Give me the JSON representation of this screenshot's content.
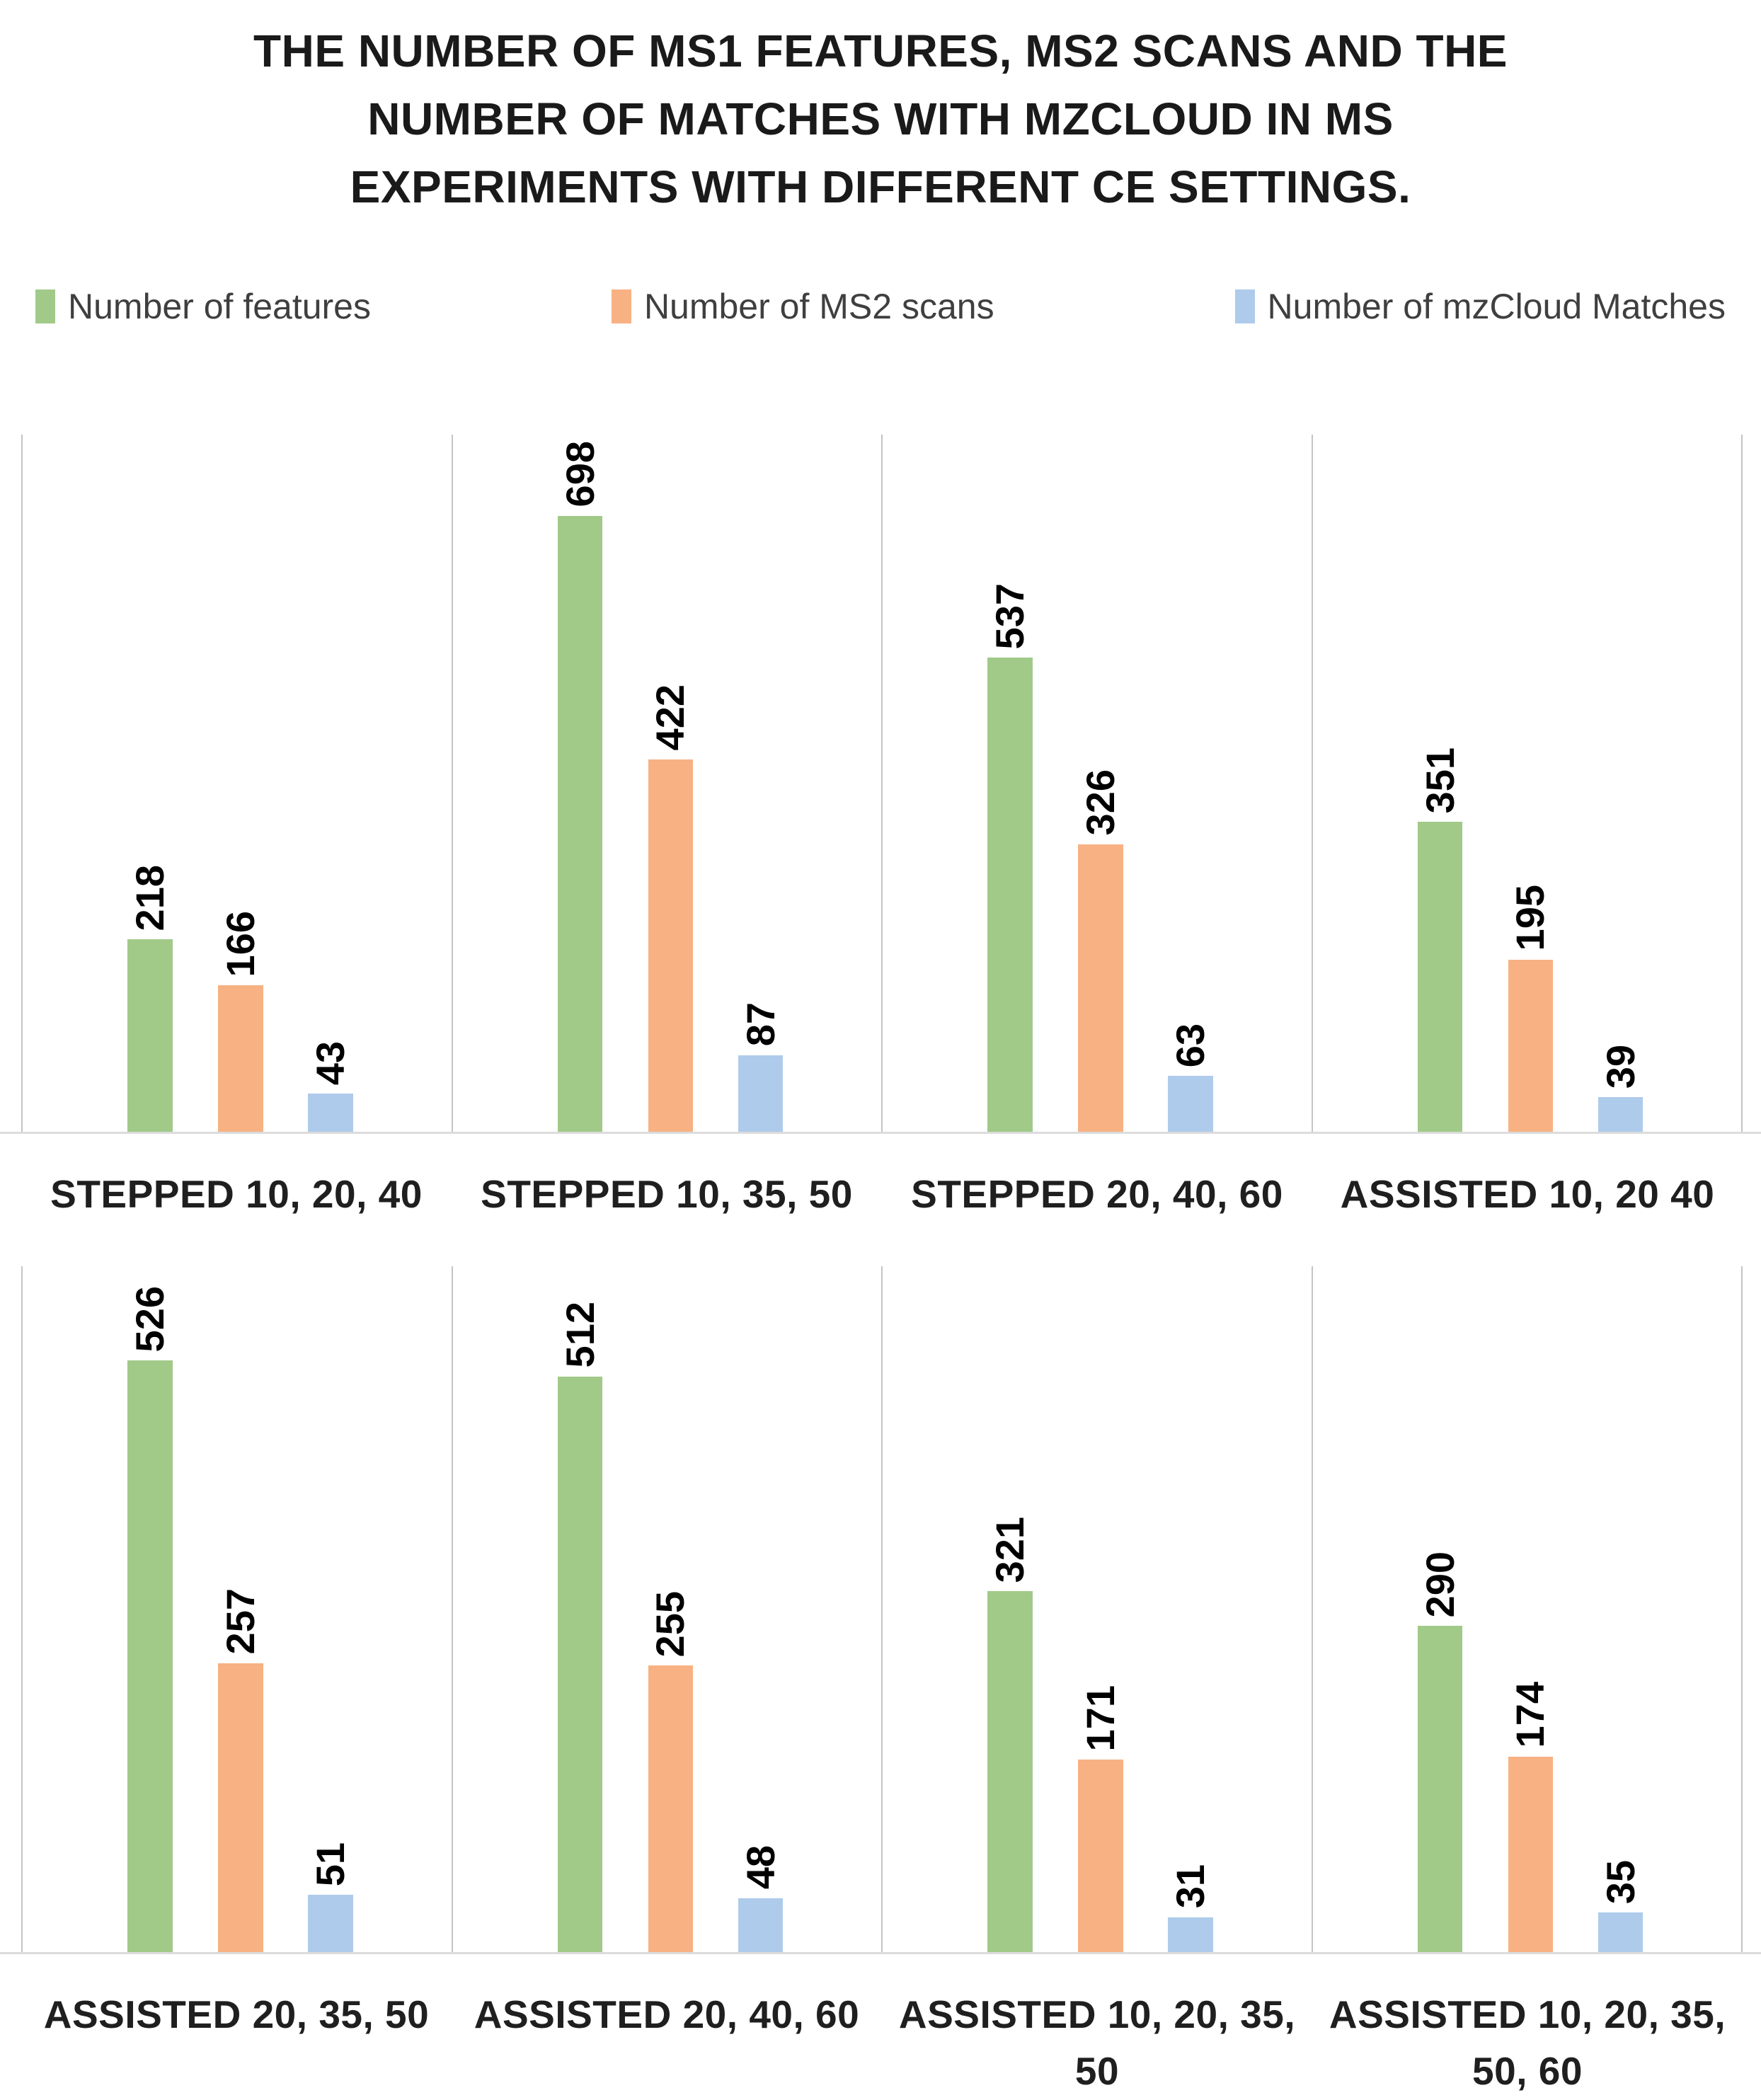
{
  "title": {
    "lines": [
      "THE NUMBER OF MS1 FEATURES, MS2 SCANS AND THE",
      "NUMBER OF MATCHES WITH MZCLOUD IN MS",
      "EXPERIMENTS WITH DIFFERENT CE SETTINGS."
    ]
  },
  "chart_data": {
    "type": "bar",
    "title": "THE NUMBER OF MS1 FEATURES, MS2 SCANS AND THE NUMBER OF MATCHES WITH MZCLOUD IN MS EXPERIMENTS WITH DIFFERENT CE SETTINGS.",
    "legend_position": "top",
    "value_labels": "rotated-90-bold-above-bars",
    "grid": "vertical panel dividers only, light gray axis line at bottom",
    "divider_color": "#c4c4c4",
    "axis_line_color": "#dcdcdc",
    "series": [
      {
        "name": "Number of features",
        "color": "#a1ca89"
      },
      {
        "name": "Number of MS2 scans",
        "color": "#f7b183"
      },
      {
        "name": "Number of mzCloud Matches",
        "color": "#aecbeb"
      }
    ],
    "rows": [
      {
        "ylim": [
          0,
          790
        ],
        "groups": [
          {
            "category_lines": [
              "STEPPED 10, 20, 40"
            ],
            "values": [
              218,
              166,
              43
            ]
          },
          {
            "category_lines": [
              "STEPPED 10, 35, 50"
            ],
            "values": [
              698,
              422,
              87
            ]
          },
          {
            "category_lines": [
              "STEPPED 20, 40, 60"
            ],
            "values": [
              537,
              326,
              63
            ]
          },
          {
            "category_lines": [
              "ASSISTED 10, 20 40"
            ],
            "values": [
              351,
              195,
              39
            ]
          }
        ]
      },
      {
        "ylim": [
          0,
          610
        ],
        "groups": [
          {
            "category_lines": [
              "ASSISTED 20, 35, 50"
            ],
            "values": [
              526,
              257,
              51
            ]
          },
          {
            "category_lines": [
              "ASSISTED 20, 40, 60"
            ],
            "values": [
              512,
              255,
              48
            ]
          },
          {
            "category_lines": [
              "ASSISTED 10, 20, 35,",
              "50"
            ],
            "values": [
              321,
              171,
              31
            ]
          },
          {
            "category_lines": [
              "ASSISTED 10, 20, 35,",
              "50, 60"
            ],
            "values": [
              290,
              174,
              35
            ]
          }
        ]
      }
    ]
  }
}
